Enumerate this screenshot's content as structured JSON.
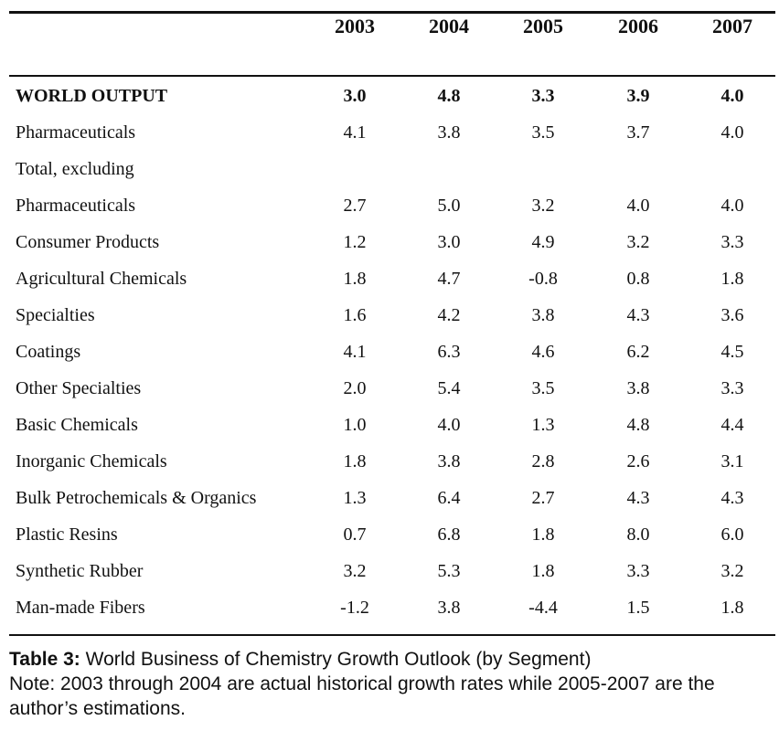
{
  "chart_data": {
    "type": "table",
    "columns": [
      "2003",
      "2004",
      "2005",
      "2006",
      "2007"
    ],
    "rows": [
      {
        "label": "WORLD OUTPUT",
        "bold": true,
        "values": [
          "3.0",
          "4.8",
          "3.3",
          "3.9",
          "4.0"
        ]
      },
      {
        "label": "Pharmaceuticals",
        "values": [
          "4.1",
          "3.8",
          "3.5",
          "3.7",
          "4.0"
        ]
      },
      {
        "label": "Total, excluding",
        "values": [
          "",
          "",
          "",
          "",
          ""
        ]
      },
      {
        "label": "Pharmaceuticals",
        "values": [
          "2.7",
          "5.0",
          "3.2",
          "4.0",
          "4.0"
        ]
      },
      {
        "label": "Consumer Products",
        "values": [
          "1.2",
          "3.0",
          "4.9",
          "3.2",
          "3.3"
        ]
      },
      {
        "label": "Agricultural Chemicals",
        "values": [
          "1.8",
          "4.7",
          "-0.8",
          "0.8",
          "1.8"
        ]
      },
      {
        "label": "Specialties",
        "values": [
          "1.6",
          "4.2",
          "3.8",
          "4.3",
          "3.6"
        ]
      },
      {
        "label": "Coatings",
        "values": [
          "4.1",
          "6.3",
          "4.6",
          "6.2",
          "4.5"
        ]
      },
      {
        "label": "Other Specialties",
        "values": [
          "2.0",
          "5.4",
          "3.5",
          "3.8",
          "3.3"
        ]
      },
      {
        "label": "Basic Chemicals",
        "values": [
          "1.0",
          "4.0",
          "1.3",
          "4.8",
          "4.4"
        ]
      },
      {
        "label": "Inorganic Chemicals",
        "values": [
          "1.8",
          "3.8",
          "2.8",
          "2.6",
          "3.1"
        ]
      },
      {
        "label": "Bulk Petrochemicals & Organics",
        "values": [
          "1.3",
          "6.4",
          "2.7",
          "4.3",
          "4.3"
        ]
      },
      {
        "label": "Plastic Resins",
        "values": [
          "0.7",
          "6.8",
          "1.8",
          "8.0",
          "6.0"
        ]
      },
      {
        "label": "Synthetic Rubber",
        "values": [
          "3.2",
          "5.3",
          "1.8",
          "3.3",
          "3.2"
        ]
      },
      {
        "label": "Man-made Fibers",
        "values": [
          "-1.2",
          "3.8",
          "-4.4",
          "1.5",
          "1.8"
        ]
      }
    ]
  },
  "caption": {
    "label": "Table 3:",
    "title": " World Business of Chemistry Growth Outlook (by Segment)",
    "note": "Note: 2003 through 2004 are actual historical growth rates while 2005-2007 are the author’s estimations."
  }
}
